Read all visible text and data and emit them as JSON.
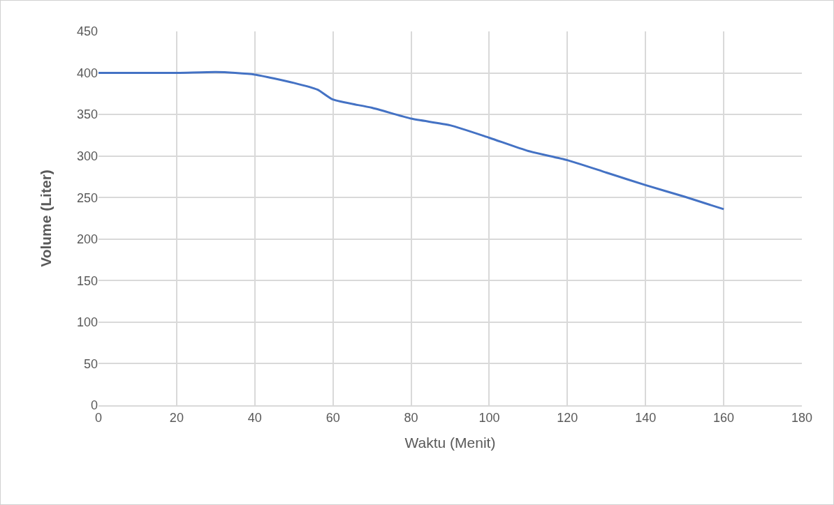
{
  "chart_data": {
    "type": "line",
    "xlabel": "Waktu (Menit)",
    "ylabel": "Volume (Liter)",
    "x": [
      0,
      10,
      20,
      30,
      35,
      40,
      50,
      56,
      60,
      70,
      80,
      90,
      100,
      110,
      120,
      130,
      140,
      150,
      160
    ],
    "series": [
      {
        "color": "#4472c4",
        "values": [
          400,
          400,
          400,
          401,
          400,
          398,
          388,
          380,
          368,
          358,
          345,
          337,
          322,
          306,
          295,
          280,
          265,
          251,
          236
        ]
      }
    ],
    "xlim": [
      0,
      180
    ],
    "xticks": [
      0,
      20,
      40,
      60,
      80,
      100,
      120,
      140,
      160,
      180
    ],
    "ylim": [
      0,
      450
    ],
    "yticks": [
      0,
      50,
      100,
      150,
      200,
      250,
      300,
      350,
      400,
      450
    ],
    "grid": true,
    "marker": "none",
    "line_style": "solid"
  }
}
